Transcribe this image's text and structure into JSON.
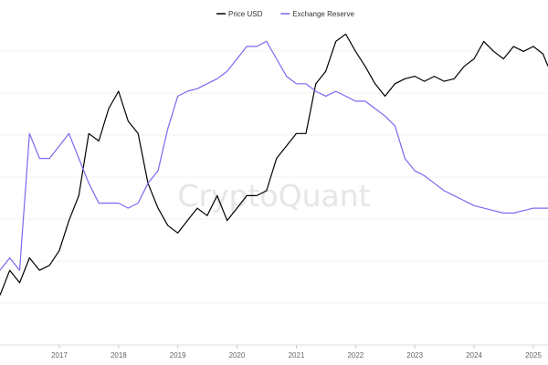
{
  "watermark": "CryptoQuant",
  "chart_data": {
    "type": "line",
    "grid": true,
    "legend_position": "top-center",
    "x": [
      "2016-01",
      "2016-03",
      "2016-05",
      "2016-07",
      "2016-09",
      "2016-11",
      "2017-01",
      "2017-03",
      "2017-05",
      "2017-07",
      "2017-09",
      "2017-11",
      "2018-01",
      "2018-03",
      "2018-05",
      "2018-07",
      "2018-09",
      "2018-11",
      "2019-01",
      "2019-03",
      "2019-05",
      "2019-07",
      "2019-09",
      "2019-11",
      "2020-01",
      "2020-03",
      "2020-05",
      "2020-07",
      "2020-09",
      "2020-11",
      "2021-01",
      "2021-03",
      "2021-05",
      "2021-07",
      "2021-09",
      "2021-11",
      "2022-01",
      "2022-03",
      "2022-05",
      "2022-07",
      "2022-09",
      "2022-11",
      "2023-01",
      "2023-03",
      "2023-05",
      "2023-07",
      "2023-09",
      "2023-11",
      "2024-01",
      "2024-03",
      "2024-05",
      "2024-07",
      "2024-09",
      "2024-11",
      "2025-01",
      "2025-03",
      "2025-04"
    ],
    "x_ticks": [
      "2017",
      "2018",
      "2019",
      "2020",
      "2021",
      "2022",
      "2023",
      "2024",
      "2025"
    ],
    "series": [
      {
        "name": "Price USD",
        "color": "#000000",
        "values": [
          0.2,
          0.3,
          0.25,
          0.35,
          0.3,
          0.32,
          0.38,
          0.5,
          0.6,
          0.85,
          0.82,
          0.95,
          1.02,
          0.9,
          0.85,
          0.65,
          0.55,
          0.48,
          0.45,
          0.5,
          0.55,
          0.52,
          0.6,
          0.5,
          0.55,
          0.6,
          0.6,
          0.62,
          0.75,
          0.8,
          0.85,
          0.85,
          1.05,
          1.1,
          1.22,
          1.25,
          1.18,
          1.12,
          1.05,
          1.0,
          1.05,
          1.07,
          1.08,
          1.06,
          1.08,
          1.06,
          1.07,
          1.12,
          1.15,
          1.22,
          1.18,
          1.15,
          1.2,
          1.18,
          1.2,
          1.17,
          1.12
        ]
      },
      {
        "name": "Exchange Reserve",
        "color": "#7b68ee",
        "values": [
          0.3,
          0.35,
          0.3,
          0.85,
          0.75,
          0.75,
          0.8,
          0.85,
          0.75,
          0.65,
          0.57,
          0.57,
          0.57,
          0.55,
          0.57,
          0.65,
          0.7,
          0.87,
          1.0,
          1.02,
          1.03,
          1.05,
          1.07,
          1.1,
          1.15,
          1.2,
          1.2,
          1.22,
          1.15,
          1.08,
          1.05,
          1.05,
          1.02,
          1.0,
          1.02,
          1.0,
          0.98,
          0.98,
          0.95,
          0.92,
          0.88,
          0.75,
          0.7,
          0.68,
          0.65,
          0.62,
          0.6,
          0.58,
          0.56,
          0.55,
          0.54,
          0.53,
          0.53,
          0.54,
          0.55,
          0.55,
          0.55
        ]
      }
    ]
  }
}
